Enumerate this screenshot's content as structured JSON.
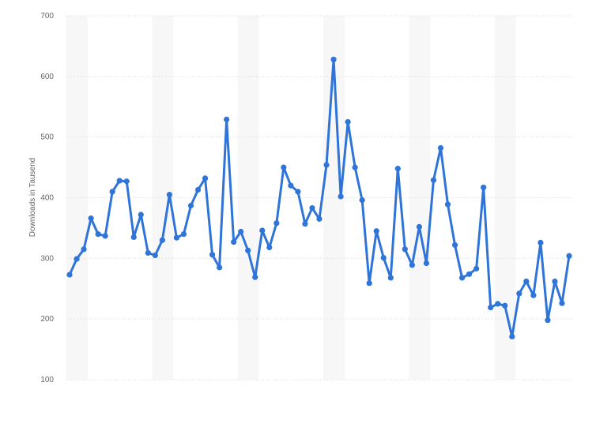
{
  "chart_data": {
    "type": "line",
    "title": "",
    "xlabel": "",
    "ylabel": "Downloads in Tausend",
    "ylim": [
      100,
      700
    ],
    "yticks": [
      100,
      200,
      300,
      400,
      500,
      600,
      700
    ],
    "grid": true,
    "legend": "none",
    "series": [
      {
        "color": "#2f74d8",
        "values": [
          273,
          299,
          315,
          366,
          340,
          337,
          410,
          428,
          427,
          335,
          372,
          309,
          305,
          330,
          405,
          334,
          340,
          387,
          413,
          432,
          306,
          285,
          529,
          327,
          344,
          313,
          269,
          346,
          318,
          358,
          450,
          420,
          410,
          357,
          383,
          365,
          454,
          628,
          402,
          525,
          450,
          396,
          259,
          345,
          301,
          268,
          448,
          315,
          289,
          352,
          292,
          429,
          482,
          389,
          322,
          268,
          274,
          283,
          417,
          219,
          225,
          222,
          171,
          242,
          262,
          239,
          326,
          198,
          262,
          226,
          304
        ]
      }
    ]
  },
  "colors": {
    "line": "#2f74d8",
    "band": "#f7f7f7",
    "grid": "#dddddd",
    "text": "#666666"
  }
}
